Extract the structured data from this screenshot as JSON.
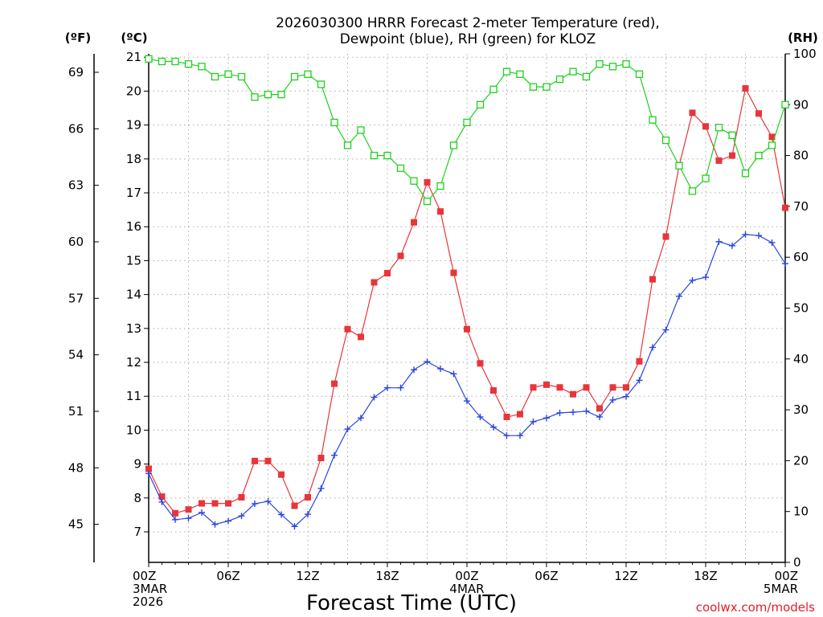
{
  "chart_data": {
    "type": "line",
    "title_lines": [
      "2026030300 HRRR Forecast 2-meter Temperature (red),",
      "Dewpoint (blue), RH (green) for KLOZ"
    ],
    "xlabel": "Forecast Time (UTC)",
    "credit": "coolwx.com/models",
    "left_unit_f": "(ºF)",
    "left_unit_c": "(ºC)",
    "right_unit": "(RH)",
    "x_ticks": [
      {
        "hour": 0,
        "lines": [
          "00Z",
          "3MAR",
          "2026"
        ]
      },
      {
        "hour": 6,
        "lines": [
          "06Z"
        ]
      },
      {
        "hour": 12,
        "lines": [
          "12Z"
        ]
      },
      {
        "hour": 18,
        "lines": [
          "18Z"
        ]
      },
      {
        "hour": 24,
        "lines": [
          "00Z",
          "4MAR"
        ]
      },
      {
        "hour": 30,
        "lines": [
          "06Z"
        ]
      },
      {
        "hour": 36,
        "lines": [
          "12Z"
        ]
      },
      {
        "hour": 42,
        "lines": [
          "18Z"
        ]
      },
      {
        "hour": 48,
        "lines": [
          "00Z",
          "5MAR"
        ]
      }
    ],
    "xlim": [
      0,
      48
    ],
    "ylim_c": [
      6.1,
      21.1
    ],
    "ylim_rh": [
      0,
      100
    ],
    "c_ticks": [
      7,
      8,
      9,
      10,
      11,
      12,
      13,
      14,
      15,
      16,
      17,
      18,
      19,
      20,
      21
    ],
    "f_ticks": [
      45,
      48,
      51,
      54,
      57,
      60,
      63,
      66,
      69
    ],
    "rh_ticks": [
      0,
      10,
      20,
      30,
      40,
      50,
      60,
      70,
      80,
      90,
      100
    ],
    "hours": [
      0,
      1,
      2,
      3,
      4,
      5,
      6,
      7,
      8,
      9,
      10,
      11,
      12,
      13,
      14,
      15,
      16,
      17,
      18,
      19,
      20,
      21,
      22,
      23,
      24,
      25,
      26,
      27,
      28,
      29,
      30,
      31,
      32,
      33,
      34,
      35,
      36,
      37,
      38,
      39,
      40,
      41,
      42,
      43,
      44,
      45,
      46,
      47,
      48
    ],
    "series": [
      {
        "name": "Temperature",
        "color": "#e8353a",
        "marker": "filled-square",
        "axis": "C",
        "values": [
          8.86,
          8.04,
          7.55,
          7.66,
          7.84,
          7.84,
          7.84,
          8.02,
          9.09,
          9.09,
          8.69,
          7.77,
          8.02,
          9.18,
          11.37,
          12.98,
          12.75,
          14.36,
          14.63,
          15.14,
          16.13,
          17.31,
          16.45,
          14.64,
          12.98,
          11.97,
          11.17,
          10.39,
          10.47,
          11.26,
          11.34,
          11.26,
          11.06,
          11.26,
          10.64,
          11.26,
          11.26,
          12.03,
          14.45,
          15.71,
          17.8,
          19.36,
          18.96,
          17.95,
          18.1,
          20.08,
          19.34,
          18.65,
          16.56
        ]
      },
      {
        "name": "Dewpoint",
        "color": "#2a45e0",
        "marker": "plus",
        "axis": "C",
        "values": [
          8.72,
          7.88,
          7.36,
          7.4,
          7.57,
          7.22,
          7.32,
          7.47,
          7.83,
          7.9,
          7.51,
          7.16,
          7.52,
          8.28,
          9.26,
          10.03,
          10.36,
          10.97,
          11.25,
          11.25,
          11.78,
          12.02,
          11.81,
          11.66,
          10.86,
          10.39,
          10.09,
          9.84,
          9.84,
          10.25,
          10.36,
          10.51,
          10.53,
          10.56,
          10.39,
          10.89,
          10.99,
          11.47,
          12.44,
          12.96,
          13.95,
          14.42,
          14.51,
          15.56,
          15.44,
          15.77,
          15.74,
          15.53,
          14.91
        ]
      },
      {
        "name": "RH",
        "color": "#1ed11e",
        "marker": "open-square",
        "axis": "RH",
        "values": [
          99,
          98.5,
          98.5,
          98,
          97.5,
          95.5,
          96,
          95.5,
          91.5,
          92,
          92,
          95.5,
          96,
          94,
          86.5,
          82,
          85,
          80,
          80,
          77.5,
          75,
          71,
          74,
          82,
          86.5,
          90,
          93,
          96.5,
          96,
          93.5,
          93.5,
          95,
          96.5,
          95.5,
          98,
          97.5,
          98,
          96,
          87,
          83,
          78,
          73,
          75.5,
          85.5,
          84,
          76.5,
          80,
          82,
          90
        ]
      }
    ]
  }
}
